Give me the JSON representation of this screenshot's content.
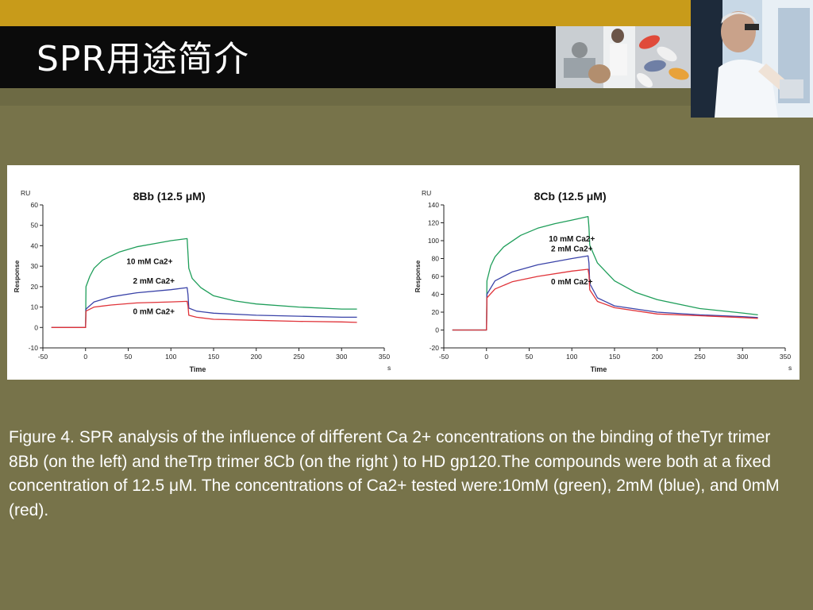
{
  "slide": {
    "title": "SPR用途简介",
    "caption": "Figure 4. SPR analysis of the influence of diﬀerent Ca 2+ concentrations on the binding of theTyr trimer 8Bb (on the left) and theTrp trimer 8Cb (on the right ) to HD gp120.The compounds were both at a fixed concentration of 12.5 μM. The concentrations of Ca2+ tested were:10mM (green), 2mM (blue), and 0mM (red)."
  },
  "colors": {
    "green": "#1f9e5a",
    "blue": "#3a43a8",
    "red": "#e0343a",
    "background": "#77734a",
    "topstrip": "#c89b1a"
  },
  "chart_data": [
    {
      "type": "line",
      "title": "8Bb (12.5 μM)",
      "ylabel_top": "RU",
      "ylabel": "Response",
      "xlabel": "Time",
      "xunit": "s",
      "xlim": [
        -50,
        350
      ],
      "ylim": [
        -10,
        60
      ],
      "xticks": [
        -50,
        0,
        50,
        100,
        150,
        200,
        250,
        300,
        350
      ],
      "yticks": [
        -10,
        0,
        10,
        20,
        30,
        40,
        50,
        60
      ],
      "series": [
        {
          "name": "10 mM Ca2+",
          "color": "green",
          "x": [
            -40,
            0,
            0.5,
            5,
            10,
            20,
            40,
            60,
            80,
            100,
            119,
            120,
            121,
            125,
            135,
            150,
            175,
            200,
            250,
            300,
            318
          ],
          "y": [
            0,
            0,
            20,
            25,
            29,
            33,
            37,
            39.5,
            41,
            42.5,
            43.5,
            36,
            29,
            24,
            19.5,
            15.5,
            13,
            11.5,
            10,
            9,
            9
          ]
        },
        {
          "name": "2 mM Ca2+",
          "color": "blue",
          "x": [
            -40,
            0,
            0.5,
            10,
            30,
            60,
            100,
            119,
            120,
            121,
            130,
            150,
            200,
            250,
            300,
            318
          ],
          "y": [
            0,
            0,
            9,
            12.5,
            15,
            17,
            18.5,
            19.5,
            16,
            9.5,
            8,
            7,
            6,
            5.5,
            5,
            5
          ]
        },
        {
          "name": "0 mM Ca2+",
          "color": "red",
          "x": [
            -40,
            0,
            0.5,
            10,
            30,
            60,
            100,
            119,
            120,
            121,
            130,
            150,
            200,
            250,
            300,
            318
          ],
          "y": [
            0,
            0,
            8,
            10,
            11,
            12,
            12.5,
            12.8,
            10.5,
            6,
            5,
            4,
            3.5,
            3,
            2.7,
            2.5
          ]
        }
      ],
      "annotations": [
        {
          "text": "10 mM Ca2+",
          "x": 75,
          "y": 31
        },
        {
          "text": "2 mM Ca2+",
          "x": 80,
          "y": 21.5
        },
        {
          "text": "0 mM Ca2+",
          "x": 80,
          "y": 6.5
        }
      ]
    },
    {
      "type": "line",
      "title": "8Cb (12.5 μM)",
      "ylabel_top": "RU",
      "ylabel": "Response",
      "xlabel": "Time",
      "xunit": "s",
      "xlim": [
        -50,
        350
      ],
      "ylim": [
        -20,
        140
      ],
      "xticks": [
        -50,
        0,
        50,
        100,
        150,
        200,
        250,
        300,
        350
      ],
      "yticks": [
        -20,
        0,
        20,
        40,
        60,
        80,
        100,
        120,
        140
      ],
      "series": [
        {
          "name": "10 mM Ca2+",
          "color": "green",
          "x": [
            -40,
            0,
            0.5,
            5,
            10,
            20,
            40,
            60,
            80,
            100,
            119,
            120,
            121,
            130,
            150,
            175,
            200,
            250,
            300,
            318
          ],
          "y": [
            0,
            0,
            55,
            72,
            82,
            93,
            106,
            114,
            119,
            123,
            127,
            115,
            95,
            75,
            55,
            42,
            34,
            24,
            19,
            17
          ]
        },
        {
          "name": "2 mM Ca2+",
          "color": "blue",
          "x": [
            -40,
            0,
            0.5,
            10,
            30,
            60,
            100,
            119,
            120,
            121,
            130,
            150,
            200,
            250,
            300,
            318
          ],
          "y": [
            0,
            0,
            40,
            55,
            65,
            73,
            80,
            83,
            75,
            52,
            36,
            27,
            20,
            17,
            15,
            14
          ]
        },
        {
          "name": "0 mM Ca2+",
          "color": "red",
          "x": [
            -40,
            0,
            0.5,
            10,
            30,
            60,
            100,
            119,
            120,
            121,
            130,
            150,
            200,
            250,
            300,
            318
          ],
          "y": [
            0,
            0,
            36,
            46,
            54,
            60,
            66,
            68,
            62,
            45,
            32,
            25,
            18,
            16,
            14,
            13
          ]
        }
      ],
      "annotations": [
        {
          "text": "10 mM Ca2+",
          "x": 100,
          "y": 99
        },
        {
          "text": "2 mM Ca2+",
          "x": 100,
          "y": 88
        },
        {
          "text": "0 mM Ca2+",
          "x": 100,
          "y": 51
        }
      ]
    }
  ]
}
